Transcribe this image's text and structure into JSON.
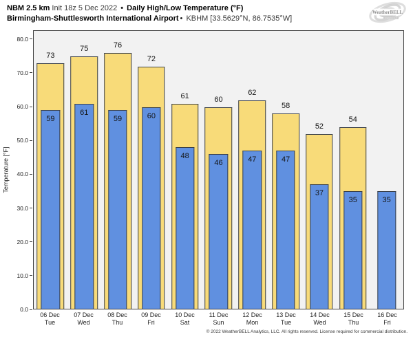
{
  "header": {
    "model": "NBM 2.5 km",
    "init": " Init 18z 5 Dec 2022 ",
    "sep": "•",
    "product": " Daily High/Low Temperature (°F)",
    "station": "Birmingham-Shuttlesworth International Airport",
    "station_sep": "•",
    "station_id": " KBHM [33.5629°N, 86.7535°W]",
    "logo_text": "WeatherBELL",
    "logo_subtext": "Analytics LLC"
  },
  "chart_data": {
    "type": "bar",
    "title": "NBM 2.5 km Init 18z 5 Dec 2022 • Daily High/Low Temperature (°F)",
    "subtitle": "Birmingham-Shuttlesworth International Airport • KBHM [33.5629°N, 86.7535°W]",
    "xlabel": "",
    "ylabel": "Temperature [°F]",
    "ylim": [
      0,
      82.6
    ],
    "yticks": [
      0,
      10,
      20,
      30,
      40,
      50,
      60,
      70,
      80
    ],
    "ytick_labels": [
      "0.0",
      "10.0",
      "20.0",
      "30.0",
      "40.0",
      "50.0",
      "60.0",
      "70.0",
      "80.0"
    ],
    "grid": false,
    "legend": "none",
    "categories": [
      {
        "date": "06 Dec",
        "day": "Tue"
      },
      {
        "date": "07 Dec",
        "day": "Wed"
      },
      {
        "date": "08 Dec",
        "day": "Thu"
      },
      {
        "date": "09 Dec",
        "day": "Fri"
      },
      {
        "date": "10 Dec",
        "day": "Sat"
      },
      {
        "date": "11 Dec",
        "day": "Sun"
      },
      {
        "date": "12 Dec",
        "day": "Mon"
      },
      {
        "date": "13 Dec",
        "day": "Tue"
      },
      {
        "date": "14 Dec",
        "day": "Wed"
      },
      {
        "date": "15 Dec",
        "day": "Thu"
      },
      {
        "date": "16 Dec",
        "day": "Fri"
      }
    ],
    "series": [
      {
        "name": "Daily High",
        "color": "#f8db79",
        "values": [
          73,
          75,
          76,
          72,
          61,
          60,
          62,
          58,
          52,
          54,
          null
        ]
      },
      {
        "name": "Daily Low",
        "color": "#6090e0",
        "values": [
          59,
          61,
          59,
          60,
          48,
          46,
          47,
          47,
          37,
          35,
          35
        ]
      }
    ]
  },
  "colors": {
    "high_bar": "#f8db79",
    "low_bar": "#6090e0",
    "bar_border": "#3a4049",
    "plot_bg": "#f2f2f2",
    "axis": "#3f3f3f"
  },
  "footer": {
    "copyright": "© 2022 WeatherBELL Analytics, LLC. All rights reserved. License required for commercial distribution."
  }
}
